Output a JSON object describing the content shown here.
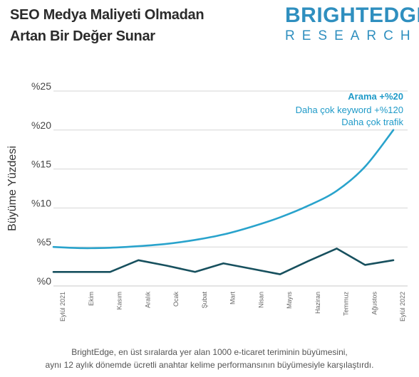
{
  "header": {
    "title_line1": "SEO Medya Maliyeti Olmadan",
    "title_line2": "Artan Bir Değer Sunar",
    "brand_top": "BRIGHTEDGE",
    "brand_bottom": "RESEARCH"
  },
  "caption": {
    "line1": "BrightEdge, en üst sıralarda yer alan 1000 e-ticaret teriminin büyümesini,",
    "line2": "aynı 12 aylık dönemde ücretli anahtar kelime performansının büyümesiyle karşılaştırdı."
  },
  "chart_data": {
    "type": "line",
    "ylabel": "Büyüme Yüzdesi",
    "xlabel": "",
    "ylim": [
      0,
      25
    ],
    "yticks": [
      0,
      5,
      10,
      15,
      20,
      25
    ],
    "ytick_labels": [
      "%0",
      "%5",
      "%10",
      "%15",
      "%20",
      "%25"
    ],
    "grid": true,
    "categories": [
      "Eylül 2021",
      "Ekim",
      "Kasım",
      "Aralık",
      "Ocak",
      "Şubat",
      "Mart",
      "Nisan",
      "Mayıs",
      "Haziran",
      "Temmuz",
      "Ağustos",
      "Eylül 2022"
    ],
    "series": [
      {
        "color": "#29a3cc",
        "values": [
          5.0,
          4.85,
          4.9,
          5.1,
          5.4,
          5.9,
          6.6,
          7.6,
          8.8,
          10.3,
          12.2,
          15.3,
          20.0
        ]
      },
      {
        "color": "#17505e",
        "values": [
          1.8,
          1.8,
          1.8,
          3.3,
          2.6,
          1.8,
          2.9,
          2.2,
          1.5,
          3.2,
          4.8,
          2.7,
          3.3
        ]
      }
    ],
    "annotations": [
      {
        "text": "Arama +%20",
        "bold": true,
        "color": "#1f9ac8"
      },
      {
        "text": "Daha çok keyword +%120",
        "bold": false,
        "color": "#1f9ac8"
      },
      {
        "text": "Daha çok trafik",
        "bold": false,
        "color": "#1f9ac8"
      }
    ]
  }
}
